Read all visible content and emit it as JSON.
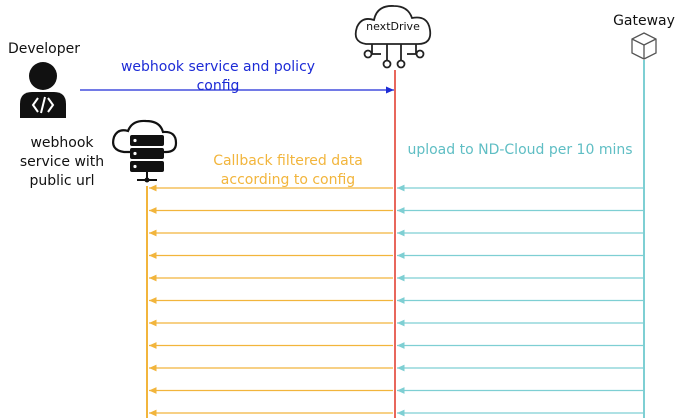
{
  "actors": {
    "developer": {
      "label": "Developer",
      "icon": "developer-icon"
    },
    "nextdrive": {
      "label": "nextDrive",
      "icon": "cloud-network-icon"
    },
    "gateway": {
      "label": "Gateway",
      "icon": "cube-icon"
    },
    "webhook_service": {
      "label": "webhook service with public url",
      "icon": "server-cloud-icon"
    }
  },
  "messages": {
    "config": {
      "label": "webhook service and policy config",
      "color": "#1d2bd6"
    },
    "upload": {
      "label": "upload to ND-Cloud per 10 mins",
      "color": "#5fbec4"
    },
    "callback": {
      "label": "Callback filtered data according to config",
      "color": "#f2b53c"
    }
  },
  "repeated_arrows": 11,
  "colors": {
    "nextdrive_lifeline": "#e8675c",
    "gateway_lifeline": "#7ecfd3",
    "webhook_lifeline": "#f2b53c"
  }
}
